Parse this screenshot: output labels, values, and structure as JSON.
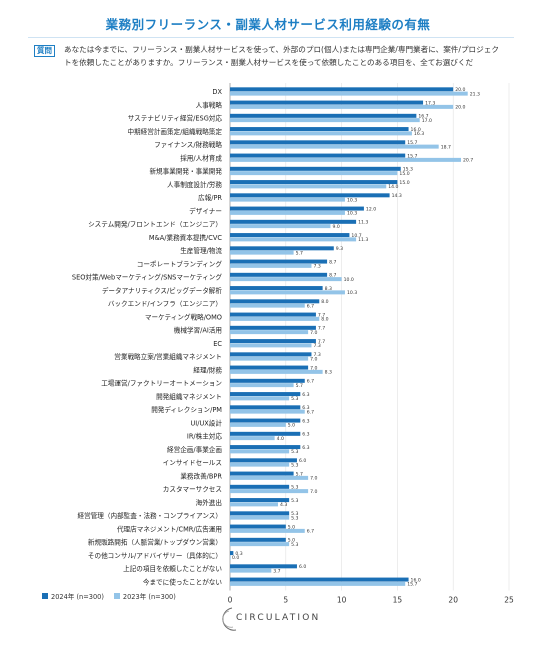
{
  "title": "業務別フリーランス・副業人材サービス利用経験の有無",
  "question_tag": "質問",
  "question_text": "あなたは今までに、フリーランス・副業人材サービスを使って、外部のプロ(個人)または専門企業/専門業者に、案件/プロジェクトを依頼したことがありますか。フリーランス・副業人材サービスを使って依頼したことのある項目を、全てお選びくだ",
  "brand": "CIRCULATION",
  "colors": {
    "series2024": "#1a6fb5",
    "series2023": "#93c4e8",
    "title": "#1e7fc4"
  },
  "chart_data": {
    "type": "bar",
    "orientation": "horizontal",
    "xlim": [
      0,
      25
    ],
    "xticks": [
      0,
      5,
      10,
      15,
      20,
      25
    ],
    "grid": true,
    "legend_position": "bottom-left",
    "categories": [
      "DX",
      "人事戦略",
      "サステナビリティ経営/ESG対応",
      "中期経営計画策定/組織戦略策定",
      "ファイナンス/財務戦略",
      "採用/人材育成",
      "新規事業開発・事業開発",
      "人事制度設計/労務",
      "広報/PR",
      "デザイナー",
      "システム開発/フロントエンド（エンジニア）",
      "M&A/業務資本提携/CVC",
      "生産管理/物流",
      "コーポレートブランディング",
      "SEO対策/Webマーケティング/SNSマーケティング",
      "データアナリティクス/ビッグデータ解析",
      "バックエンド/インフラ（エンジニア）",
      "マーケティング戦略/OMO",
      "機械学習/AI活用",
      "EC",
      "営業戦略立案/営業組織マネジメント",
      "経理/財務",
      "工場運営/ファクトリーオートメーション",
      "開発組織マネジメント",
      "開発ディレクション/PM",
      "UI/UX設計",
      "IR/株主対応",
      "経営企画/事業企画",
      "インサイドセールス",
      "業務改善/BPR",
      "カスタマーサクセス",
      "海外進出",
      "経営管理（内部監査・法務・コンプライアンス）",
      "代理店マネジメント/CMR/広告運用",
      "新規販路開拓（人脈営業/トップダウン営業）",
      "その他コンサル/アドバイザリー（具体的に）",
      "上記の項目を依頼したことがない",
      "今までに使ったことがない"
    ],
    "series": [
      {
        "name": "2024年 (n=300)",
        "values": [
          20.0,
          17.3,
          16.7,
          16.0,
          15.7,
          15.7,
          15.3,
          15.0,
          14.3,
          12.0,
          11.3,
          10.7,
          9.3,
          8.7,
          8.7,
          8.3,
          8.0,
          7.7,
          7.7,
          7.7,
          7.3,
          7.0,
          6.7,
          6.3,
          6.3,
          6.3,
          6.3,
          6.3,
          6.0,
          5.7,
          5.3,
          5.3,
          5.3,
          5.0,
          5.0,
          0.3,
          6.0,
          16.0
        ]
      },
      {
        "name": "2023年 (n=300)",
        "values": [
          21.3,
          20.0,
          17.0,
          16.3,
          18.7,
          20.7,
          15.0,
          14.0,
          10.3,
          10.3,
          9.0,
          11.3,
          5.7,
          7.3,
          10.0,
          10.3,
          6.7,
          8.0,
          7.0,
          7.3,
          7.0,
          8.3,
          5.7,
          5.3,
          6.7,
          5.0,
          4.0,
          5.3,
          5.3,
          7.0,
          7.0,
          4.3,
          5.3,
          6.7,
          5.3,
          0.0,
          3.7,
          15.7
        ]
      }
    ]
  }
}
